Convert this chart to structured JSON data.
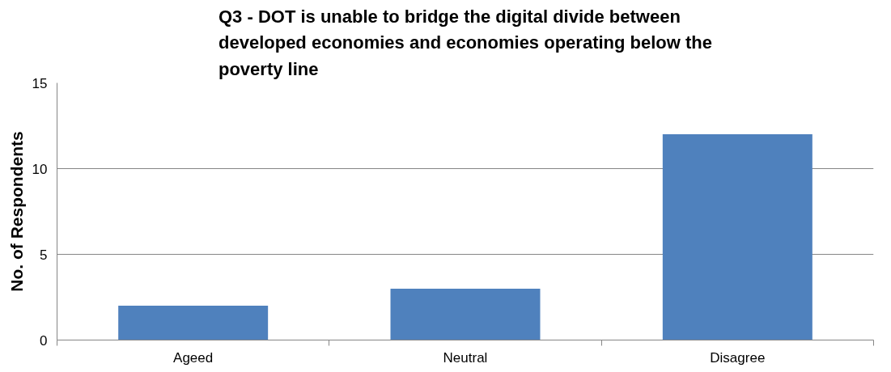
{
  "chart_data": {
    "type": "bar",
    "title": "Q3 - DOT is unable to bridge the digital divide between developed economies and economies operating below the poverty line",
    "ylabel": "No. of Respondents",
    "categories": [
      "Ageed",
      "Neutral",
      "Disagree"
    ],
    "values": [
      2,
      3,
      12
    ],
    "color": "#4f81bd",
    "ylim": [
      0,
      15
    ],
    "yticks": [
      0,
      5,
      10,
      15
    ],
    "grid": "y"
  }
}
